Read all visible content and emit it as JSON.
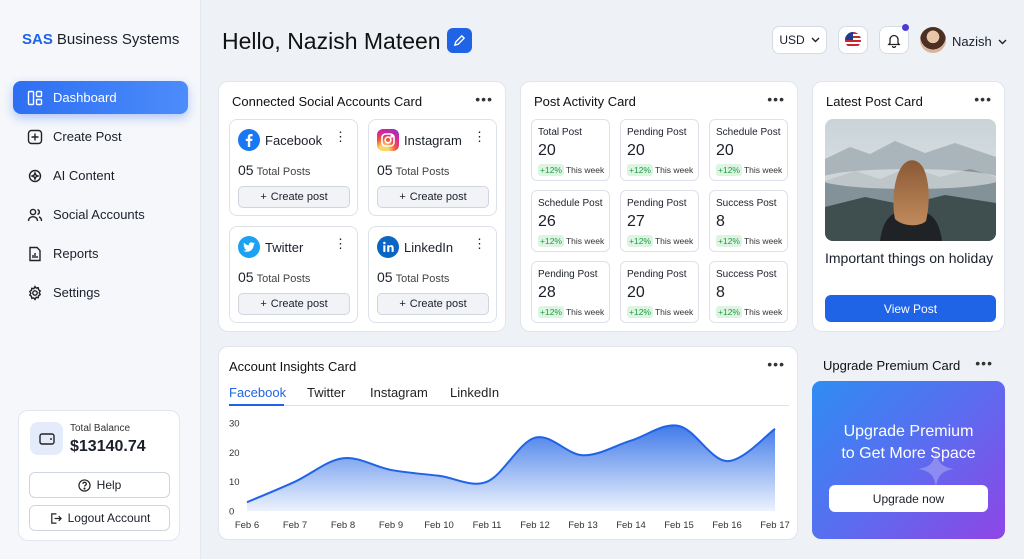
{
  "brand": {
    "short": "SAS",
    "name": "Business Systems"
  },
  "sidebar": {
    "items": [
      {
        "label": "Dashboard",
        "icon": "dashboard-icon"
      },
      {
        "label": "Create Post",
        "icon": "plus-square-icon"
      },
      {
        "label": "AI Content",
        "icon": "ai-sparkle-icon"
      },
      {
        "label": "Social Accounts",
        "icon": "users-icon"
      },
      {
        "label": "Reports",
        "icon": "report-icon"
      },
      {
        "label": "Settings",
        "icon": "gear-icon"
      }
    ],
    "balance_label": "Total Balance",
    "balance_value": "$13140.74",
    "help_label": "Help",
    "logout_label": "Logout Account"
  },
  "header": {
    "greeting": "Hello, Nazish Mateen",
    "currency": "USD",
    "user_name": "Nazish"
  },
  "social_card": {
    "title": "Connected Social Accounts Card",
    "accounts": [
      {
        "name": "Facebook",
        "count": "05",
        "count_label": "Total Posts",
        "button": "Create post",
        "color": "#1877f2"
      },
      {
        "name": "Instagram",
        "count": "05",
        "count_label": "Total Posts",
        "button": "Create post",
        "color": "#e1306c"
      },
      {
        "name": "Twitter",
        "count": "05",
        "count_label": "Total Posts",
        "button": "Create post",
        "color": "#1da1f2"
      },
      {
        "name": "LinkedIn",
        "count": "05",
        "count_label": "Total Posts",
        "button": "Create post",
        "color": "#0a66c2"
      }
    ]
  },
  "activity_card": {
    "title": "Post Activity Card",
    "stats": [
      {
        "label": "Total Post",
        "value": "20",
        "change": "+12%",
        "period": "This week"
      },
      {
        "label": "Pending Post",
        "value": "20",
        "change": "+12%",
        "period": "This week"
      },
      {
        "label": "Schedule Post",
        "value": "20",
        "change": "+12%",
        "period": "This week"
      },
      {
        "label": "Schedule Post",
        "value": "26",
        "change": "+12%",
        "period": "This week"
      },
      {
        "label": "Pending Post",
        "value": "27",
        "change": "+12%",
        "period": "This week"
      },
      {
        "label": "Success Post",
        "value": "8",
        "change": "+12%",
        "period": "This week"
      },
      {
        "label": "Pending Post",
        "value": "28",
        "change": "+12%",
        "period": "This week"
      },
      {
        "label": "Pending Post",
        "value": "20",
        "change": "+12%",
        "period": "This week"
      },
      {
        "label": "Success Post",
        "value": "8",
        "change": "+12%",
        "period": "This week"
      }
    ]
  },
  "latest_card": {
    "title": "Latest Post Card",
    "post_title": "Important things on holiday",
    "button": "View Post"
  },
  "insights_card": {
    "title": "Account Insights Card",
    "tabs": [
      "Facebook",
      "Twitter",
      "Instagram",
      "LinkedIn"
    ]
  },
  "premium_card": {
    "title": "Upgrade Premium Card",
    "line1": "Upgrade Premium",
    "line2": "to Get More Space",
    "button": "Upgrade now"
  },
  "chart_data": {
    "type": "area",
    "x": [
      "Feb 6",
      "Feb 7",
      "Feb 8",
      "Feb 9",
      "Feb 10",
      "Feb 11",
      "Feb 12",
      "Feb 13",
      "Feb 14",
      "Feb 15",
      "Feb 16",
      "Feb 17"
    ],
    "values": [
      3,
      10,
      18,
      14,
      12,
      10,
      25,
      19,
      24,
      29,
      17,
      28
    ],
    "yticks": [
      0,
      10,
      20,
      30
    ],
    "ylim": [
      0,
      30
    ],
    "color": "#1f63e6",
    "grid": false
  }
}
